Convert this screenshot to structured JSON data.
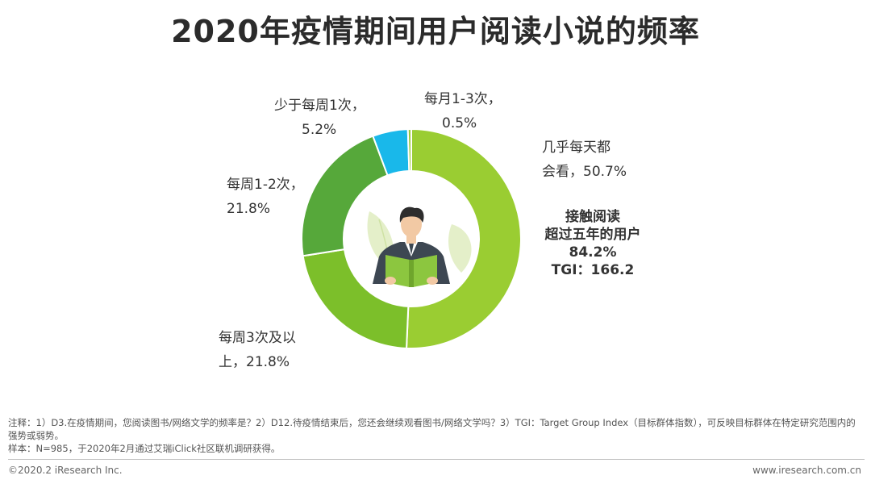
{
  "header": {
    "title": "2020年疫情期间用户阅读小说的频率"
  },
  "chart_data": {
    "type": "pie",
    "donut": true,
    "slices": [
      {
        "label_lines": [
          "几乎每天都",
          "会看，50.7%"
        ],
        "value": 50.7,
        "color": "#9acd32"
      },
      {
        "label_lines": [
          "每周3次及以",
          "上，21.8%"
        ],
        "value": 21.8,
        "color": "#7cbf2a"
      },
      {
        "label_lines": [
          "每周1-2次，",
          "21.8%"
        ],
        "value": 21.8,
        "color": "#56a83a"
      },
      {
        "label_lines": [
          "少于每周1次，",
          "5.2%"
        ],
        "value": 5.2,
        "color": "#19b8ea"
      },
      {
        "label_lines": [
          "每月1-3次，",
          "0.5%"
        ],
        "value": 0.5,
        "color": "#9cc83c"
      }
    ],
    "callout_lines": [
      "接触阅读",
      "超过五年的用户",
      "84.2%",
      "TGI：166.2"
    ],
    "center_illustration": "person-reading-book-icon"
  },
  "notes": {
    "line1": "注释：1）D3.在疫情期间，您阅读图书/网络文学的频率是？2）D12.待疫情结束后，您还会继续观看图书/网络文学吗？3）TGI：Target Group Index（目标群体指数），可反映目标群体在特定研究范围内的强势或弱势。",
    "line2": "样本：N=985，于2020年2月通过艾瑞iClick社区联机调研获得。"
  },
  "footer": {
    "copyright": "©2020.2 iResearch Inc.",
    "website": "www.iresearch.com.cn"
  }
}
